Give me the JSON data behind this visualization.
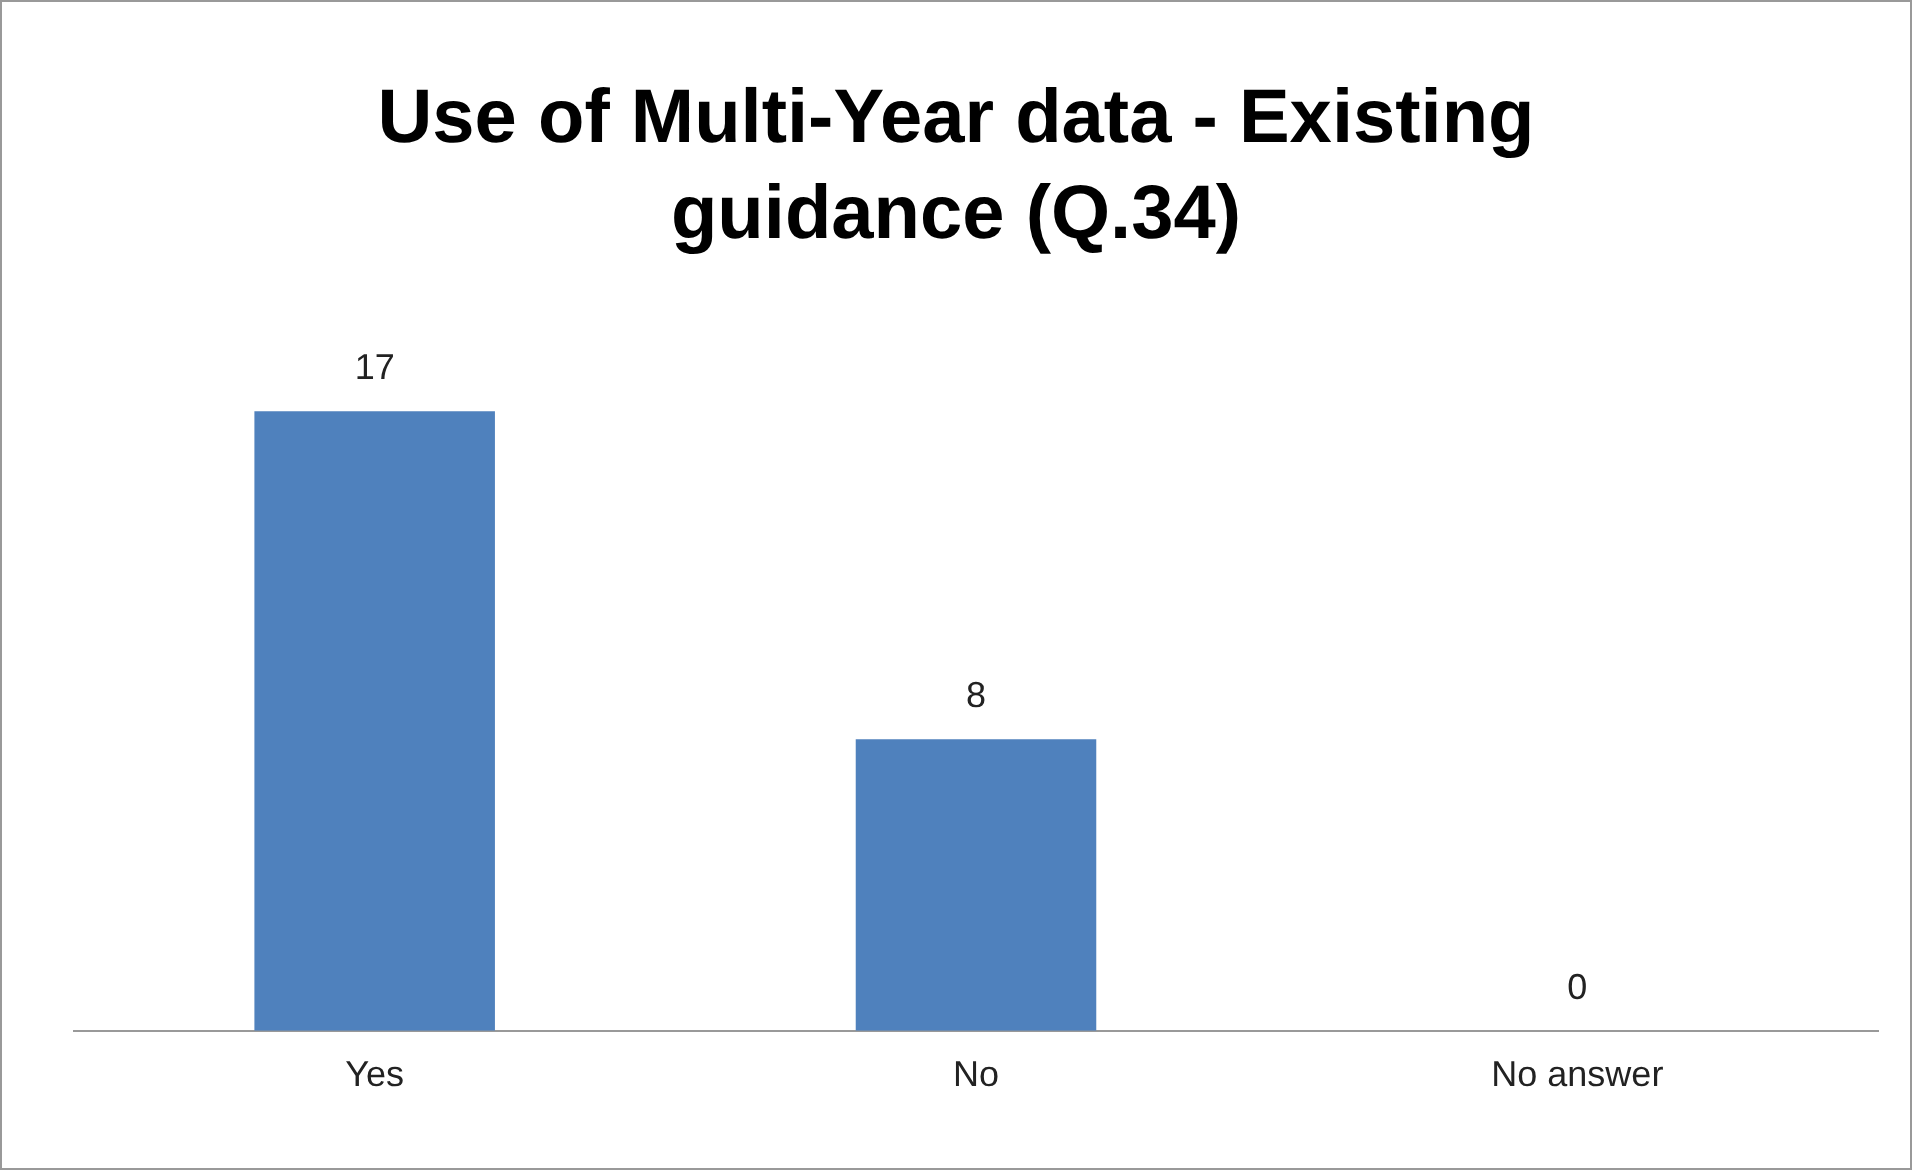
{
  "chart_data": {
    "type": "bar",
    "title": "Use of Multi-Year data - Existing guidance (Q.34)",
    "categories": [
      "Yes",
      "No",
      "No answer"
    ],
    "values": [
      17,
      8,
      0
    ],
    "color": "#4f81bd",
    "data_labels": true,
    "grid": false,
    "legend": false
  }
}
